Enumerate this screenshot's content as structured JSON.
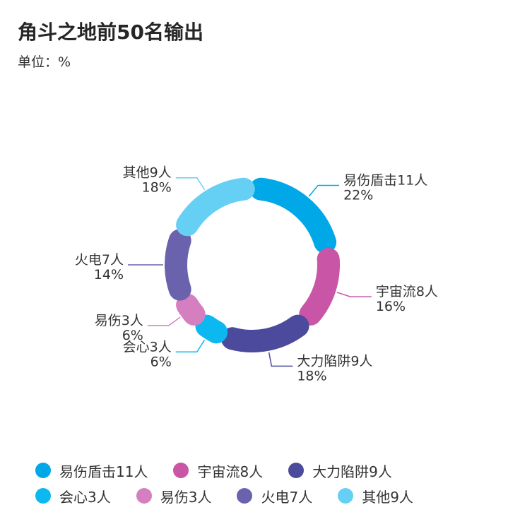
{
  "title": "角斗之地前50名输出",
  "unit_label": "单位：%",
  "chart_data": {
    "type": "pie",
    "donut": true,
    "title": "角斗之地前50名输出",
    "unit": "%",
    "legend_position": "bottom",
    "slices": [
      {
        "label": "易伤盾击11人",
        "value": 22,
        "value_label": "22%",
        "color": "#00a8e8"
      },
      {
        "label": "宇宙流8人",
        "value": 16,
        "value_label": "16%",
        "color": "#c855a6"
      },
      {
        "label": "大力陷阱9人",
        "value": 18,
        "value_label": "18%",
        "color": "#4b4a9c"
      },
      {
        "label": "会心3人",
        "value": 6,
        "value_label": "6%",
        "color": "#0bb8ef"
      },
      {
        "label": "易伤3人",
        "value": 6,
        "value_label": "6%",
        "color": "#d67fc0"
      },
      {
        "label": "火电7人",
        "value": 14,
        "value_label": "14%",
        "color": "#6b62ae"
      },
      {
        "label": "其他9人",
        "value": 18,
        "value_label": "18%",
        "color": "#66cff4"
      }
    ]
  }
}
